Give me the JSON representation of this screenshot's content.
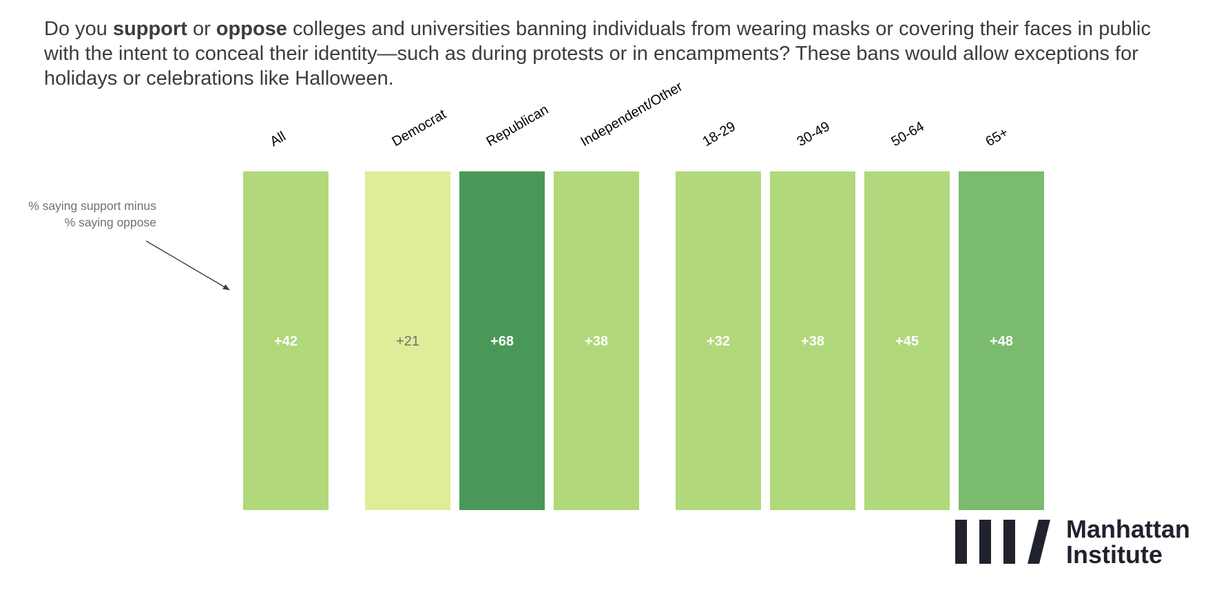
{
  "question": {
    "part1": "Do you ",
    "bold1": "support",
    "part2": " or ",
    "bold2": "oppose",
    "part3": " colleges and universities banning individuals from wearing masks or covering their faces in public with the intent to conceal their identity—such as during protests or in encampments? These bans would allow exceptions for holidays or celebrations like Halloween."
  },
  "annotation": {
    "line1": "% saying support minus",
    "line2": "% saying oppose"
  },
  "chart_data": {
    "type": "heatmap",
    "title": "",
    "measure": "% saying support minus % saying oppose",
    "categories": [
      "All",
      "Democrat",
      "Republican",
      "Independent/Other",
      "18-29",
      "30-49",
      "50-64",
      "65+"
    ],
    "groups": [
      [
        "All"
      ],
      [
        "Democrat",
        "Republican",
        "Independent/Other"
      ],
      [
        "18-29",
        "30-49",
        "50-64",
        "65+"
      ]
    ],
    "values": [
      42,
      21,
      68,
      38,
      32,
      38,
      45,
      48
    ],
    "labels": [
      "+42",
      "+21",
      "+68",
      "+38",
      "+32",
      "+38",
      "+45",
      "+48"
    ],
    "colors": [
      "#b1d87b",
      "#dfed98",
      "#4a9858",
      "#b1d87b",
      "#b1d87b",
      "#b1d87b",
      "#b1d87b",
      "#7bbb6d"
    ],
    "label_colors": [
      "#ffffff",
      "#6e6e6e",
      "#ffffff",
      "#ffffff",
      "#ffffff",
      "#ffffff",
      "#ffffff",
      "#ffffff"
    ]
  },
  "logo": {
    "line1": "Manhattan",
    "line2": "Institute",
    "color": "#20232e"
  }
}
